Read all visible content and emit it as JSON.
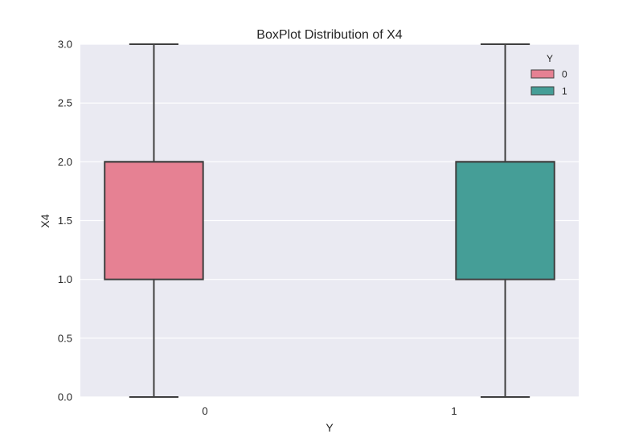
{
  "chart_data": {
    "type": "box",
    "title": "BoxPlot Distribution of X4",
    "xlabel": "Y",
    "ylabel": "X4",
    "categories": [
      "0",
      "1"
    ],
    "ylim": [
      0.0,
      3.0
    ],
    "yticks": [
      "0.0",
      "0.5",
      "1.0",
      "1.5",
      "2.0",
      "2.5",
      "3.0"
    ],
    "grid": true,
    "background": "#eaeaf2",
    "series": [
      {
        "category": "0",
        "whisker_low": 0.0,
        "q1": 1.0,
        "median": 2.0,
        "q3": 2.0,
        "whisker_high": 3.0,
        "color": "#e68193"
      },
      {
        "category": "1",
        "whisker_low": 0.0,
        "q1": 1.0,
        "median": 2.0,
        "q3": 2.0,
        "whisker_high": 3.0,
        "color": "#459e97"
      }
    ],
    "legend": {
      "title": "Y",
      "placement": "top-right",
      "entries": [
        {
          "label": "0",
          "color": "#e68193"
        },
        {
          "label": "1",
          "color": "#459e97"
        }
      ]
    }
  }
}
